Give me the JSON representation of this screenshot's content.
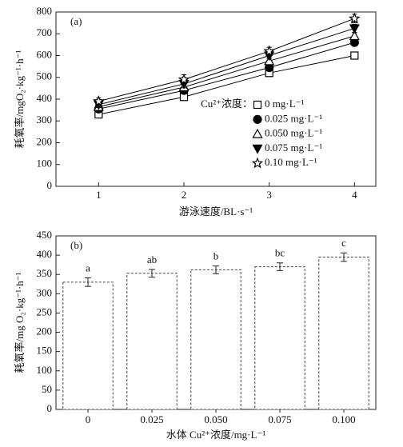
{
  "chart_data": [
    {
      "type": "line",
      "label": "(a)",
      "xlabel": "游泳速度/BL·s⁻¹",
      "ylabel": "耗氧率/mgO₂·kg⁻¹·h⁻¹",
      "x": [
        1,
        2,
        3,
        4
      ],
      "xlim": [
        0.5,
        4.25
      ],
      "xticks": [
        1,
        2,
        3,
        4
      ],
      "ylim": [
        0,
        800
      ],
      "yticks": [
        0,
        100,
        200,
        300,
        400,
        500,
        600,
        700,
        800
      ],
      "legend_title": "Cu²⁺浓度：",
      "series": [
        {
          "name": "0 mg·L⁻¹",
          "color": "#000000",
          "marker": "square-open",
          "values": [
            330,
            410,
            520,
            600
          ],
          "errors": [
            12,
            14,
            15,
            12
          ]
        },
        {
          "name": "0.025 mg·L⁻¹",
          "color": "#000000",
          "marker": "circle",
          "values": [
            355,
            440,
            545,
            660
          ],
          "errors": [
            12,
            14,
            15,
            14
          ]
        },
        {
          "name": "0.050 mg·L⁻¹",
          "color": "#000000",
          "marker": "triangle-open",
          "values": [
            365,
            455,
            575,
            690
          ],
          "errors": [
            12,
            15,
            15,
            15
          ]
        },
        {
          "name": "0.075 mg·L⁻¹",
          "color": "#000000",
          "marker": "triangle-down",
          "values": [
            375,
            470,
            600,
            725
          ],
          "errors": [
            14,
            18,
            16,
            18
          ]
        },
        {
          "name": "0.10 mg·L⁻¹",
          "color": "#000000",
          "marker": "star-open",
          "values": [
            390,
            490,
            620,
            770
          ],
          "errors": [
            16,
            22,
            18,
            20
          ]
        }
      ]
    },
    {
      "type": "bar",
      "label": "(b)",
      "xlabel": "水体 Cu²⁺浓度/mg·L⁻¹",
      "ylabel": "耗氧率/mg O₂·kg⁻¹·h⁻¹",
      "categories": [
        "0",
        "0.025",
        "0.050",
        "0.075",
        "0.100"
      ],
      "values": [
        330,
        353,
        362,
        370,
        395
      ],
      "errors": [
        11,
        10,
        10,
        10,
        11
      ],
      "annotations": [
        "a",
        "ab",
        "b",
        "bc",
        "c"
      ],
      "color": "#ffffff",
      "ylim": [
        0,
        450
      ],
      "yticks": [
        0,
        50,
        100,
        150,
        200,
        250,
        300,
        350,
        400,
        450
      ]
    }
  ]
}
